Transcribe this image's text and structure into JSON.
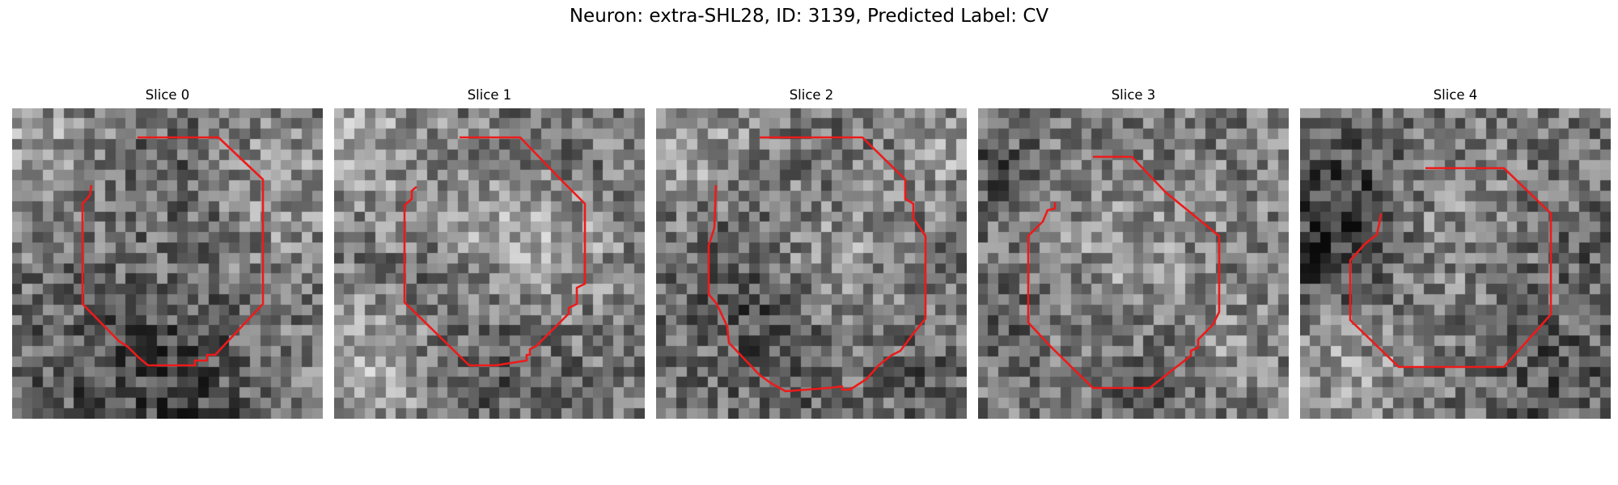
{
  "figure": {
    "title": "Neuron: extra-SHL28, ID: 3139, Predicted Label: CV"
  },
  "colors": {
    "contour": "#ee1a1a",
    "background": "#ffffff"
  },
  "panels": [
    {
      "title": "Slice 0"
    },
    {
      "title": "Slice 1"
    },
    {
      "title": "Slice 2"
    },
    {
      "title": "Slice 3"
    },
    {
      "title": "Slice 4"
    }
  ]
}
